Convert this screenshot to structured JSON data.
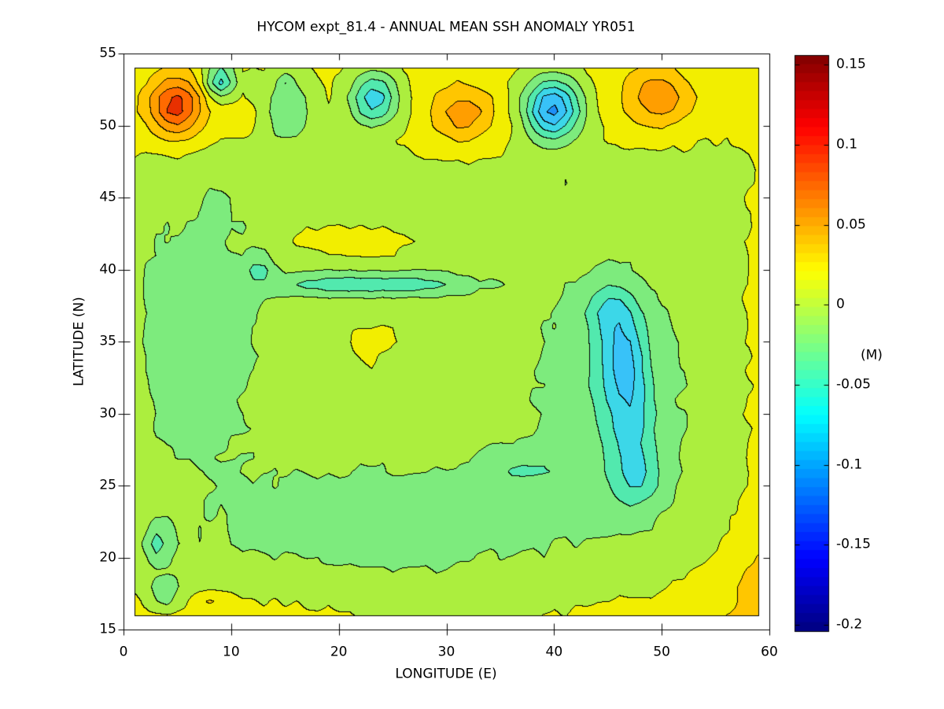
{
  "chart_data": {
    "type": "contour",
    "title": "HYCOM expt_81.4 - ANNUAL MEAN SSH ANOMALY YR051",
    "xlabel": "LONGITUDE (E)",
    "ylabel": "LATITUDE (N)",
    "x_range": [
      0,
      60
    ],
    "y_range": [
      15,
      55
    ],
    "x_ticks": [
      0,
      10,
      20,
      30,
      40,
      50,
      60
    ],
    "y_ticks": [
      15,
      20,
      25,
      30,
      35,
      40,
      45,
      50,
      55
    ],
    "extent": {
      "lon": [
        1,
        59
      ],
      "lat": [
        16,
        54
      ]
    },
    "caxis": [
      -0.204,
      0.156
    ],
    "contour_level_step": 0.025,
    "first_level": -0.125,
    "grid_on": false,
    "legend": "colorbar-right",
    "band_colors": [
      "#1478E8",
      "#1E90F8",
      "#38C2F8",
      "#3CD7E8",
      "#52E9AE",
      "#7DEB7D",
      "#ACEE3E",
      "#F2EE00",
      "#FFC600",
      "#FF9E00",
      "#FF6A00",
      "#E83000"
    ],
    "colorbar": {
      "unit_label": "(M)",
      "ticks": [
        {
          "value": 0.15,
          "label": "0.15"
        },
        {
          "value": 0.1,
          "label": "0.1"
        },
        {
          "value": 0.05,
          "label": "0.05"
        },
        {
          "value": 0.0,
          "label": "0"
        },
        {
          "value": -0.05,
          "label": "-0.05"
        },
        {
          "value": -0.1,
          "label": "-0.1"
        },
        {
          "value": -0.15,
          "label": "-0.15"
        },
        {
          "value": -0.2,
          "label": "-0.2"
        }
      ]
    },
    "grid_step": 1.0,
    "noise_amp": 0.0035,
    "base_field": {
      "offset": 0.012,
      "top": {
        "amp": 0.018,
        "edge": 47.8,
        "width": 1.1
      },
      "bottom": {
        "amp": 0.023,
        "edge": 17.8,
        "width": 0.8
      },
      "right": {
        "amp": 0.02,
        "edge": 57.2,
        "width": 0.9
      }
    },
    "anomaly_features": [
      [
        4.8,
        51.4,
        0.105,
        1.9,
        1.5
      ],
      [
        4.9,
        51.3,
        0.01,
        0.7,
        0.6
      ],
      [
        8.9,
        53.2,
        -0.093,
        1.0,
        0.85
      ],
      [
        15.2,
        51.2,
        -0.048,
        1.7,
        1.9
      ],
      [
        15.0,
        53.0,
        -0.028,
        0.5,
        0.4
      ],
      [
        23.2,
        51.9,
        -0.1,
        1.5,
        1.25
      ],
      [
        31.5,
        50.9,
        0.062,
        2.1,
        1.4
      ],
      [
        39.8,
        51.2,
        -0.138,
        1.8,
        1.45
      ],
      [
        49.5,
        52.0,
        0.065,
        2.3,
        1.4
      ],
      [
        10.6,
        50.5,
        0.03,
        1.1,
        0.5
      ],
      [
        9.0,
        50.0,
        -0.01,
        0.5,
        0.35
      ],
      [
        21.0,
        41.9,
        0.024,
        5.8,
        1.05
      ],
      [
        6.3,
        35.5,
        -0.03,
        4.6,
        5.8
      ],
      [
        8.6,
        43.9,
        -0.02,
        0.8,
        1.3
      ],
      [
        11.0,
        43.1,
        -0.018,
        0.45,
        0.22
      ],
      [
        23.0,
        39.2,
        -0.027,
        6.5,
        0.85
      ],
      [
        23.0,
        39.1,
        -0.036,
        6.0,
        0.26
      ],
      [
        18.3,
        39.05,
        -0.008,
        2.2,
        0.26
      ],
      [
        27.6,
        39.1,
        -0.008,
        2.4,
        0.27
      ],
      [
        23.0,
        39.1,
        0.0025,
        1.0,
        0.3
      ],
      [
        12.5,
        40.3,
        -0.042,
        0.85,
        0.7
      ],
      [
        23.0,
        32.6,
        0.008,
        7.0,
        2.9
      ],
      [
        23.0,
        35.2,
        0.015,
        1.9,
        0.95
      ],
      [
        36.6,
        40.2,
        0.016,
        0.45,
        0.3
      ],
      [
        41.1,
        46.6,
        -0.026,
        0.65,
        0.6
      ],
      [
        41.0,
        47.35,
        0.02,
        0.5,
        0.28
      ],
      [
        46.2,
        34.3,
        -0.058,
        1.6,
        2.4
      ],
      [
        44.9,
        37.2,
        -0.04,
        1.5,
        1.2
      ],
      [
        46.6,
        33.3,
        -0.013,
        0.8,
        1.5
      ],
      [
        47.0,
        29.3,
        -0.05,
        1.5,
        2.5
      ],
      [
        47.8,
        25.4,
        -0.038,
        1.7,
        1.4
      ],
      [
        36.8,
        26.3,
        -0.028,
        3.0,
        0.95
      ],
      [
        45.0,
        31.5,
        -0.03,
        5.0,
        6.0
      ],
      [
        24.0,
        22.5,
        -0.024,
        12.0,
        3.2
      ],
      [
        3.1,
        21.0,
        -0.048,
        0.75,
        0.85
      ],
      [
        3.6,
        17.6,
        -0.042,
        0.7,
        0.65
      ],
      [
        4.5,
        17.6,
        -0.018,
        1.6,
        0.9
      ],
      [
        7.8,
        17.1,
        0.027,
        1.2,
        0.33
      ],
      [
        5.2,
        25.4,
        0.02,
        1.5,
        0.45
      ],
      [
        0.8,
        32.0,
        0.016,
        0.9,
        8.0
      ],
      [
        30.5,
        16.8,
        -0.021,
        6.0,
        1.1
      ],
      [
        58.0,
        19.0,
        0.02,
        4.5,
        3.0
      ],
      [
        57.5,
        47.5,
        -0.012,
        1.2,
        1.2
      ]
    ]
  }
}
